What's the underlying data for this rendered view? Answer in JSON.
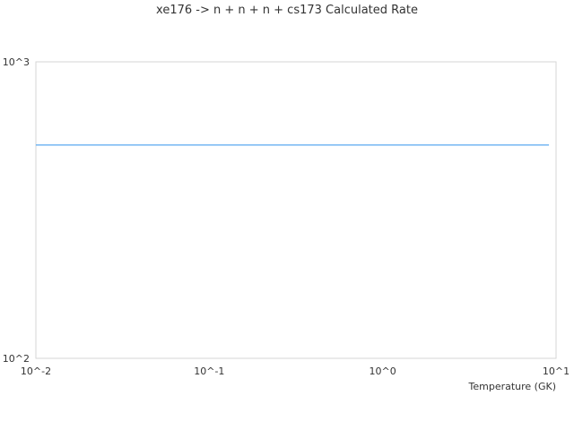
{
  "chart_data": {
    "type": "line",
    "title": "xe176 -> n + n + n + cs173 Calculated Rate",
    "xlabel": "Temperature (GK)",
    "ylabel": "",
    "x_scale": "log",
    "y_scale": "log",
    "xlim": [
      0.01,
      10
    ],
    "ylim": [
      100,
      1000
    ],
    "x_ticks": [
      "10^-2",
      "10^-1",
      "10^0",
      "10^1"
    ],
    "y_ticks": [
      "10^2",
      "10^3"
    ],
    "grid": false,
    "series": [
      {
        "color": "#5aa9f0",
        "x": [
          0.01,
          9.1
        ],
        "y": [
          524,
          524
        ]
      }
    ]
  }
}
